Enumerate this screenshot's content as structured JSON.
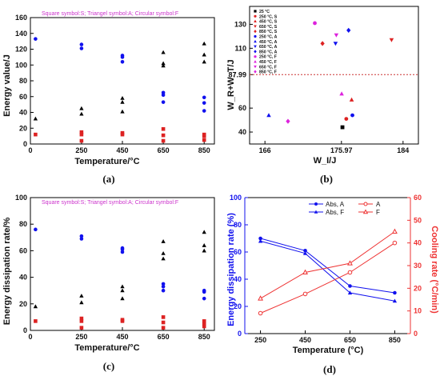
{
  "colors": {
    "S": "#dd2222",
    "A": "#000000",
    "F": "#1111ee",
    "magenta": "#dd22dd",
    "refline": "#cc3333"
  },
  "panels": {
    "a": {
      "label": "(a)",
      "ylabel": "Energy value/J",
      "xlabel": "Temperature/°C",
      "note": "Square symbol:S; Triangel symbol:A; Circular symbol:F"
    },
    "b": {
      "label": "(b)",
      "ylabel": "W_R+W_T/J",
      "xlabel": "W_I/J"
    },
    "c": {
      "label": "(c)",
      "ylabel": "Energy dissipation rate/%",
      "xlabel": "Temperature/°C",
      "note": "Square symbol:S; Triangel symbol:A; Circular symbol:F"
    },
    "d": {
      "label": "(d)",
      "ylabel": "Energy dissipation rate (%)",
      "y2label": "Cooling rate (°C/min)",
      "xlabel": "Temperature (°C)"
    }
  },
  "chart_data": [
    {
      "id": "a",
      "type": "scatter",
      "xlim": [
        0,
        900
      ],
      "ylim": [
        0,
        160
      ],
      "xticks": [
        0,
        250,
        450,
        650,
        850
      ],
      "yticks": [
        0,
        20,
        40,
        60,
        80,
        100,
        120,
        140,
        160
      ],
      "points": [
        {
          "x": 25,
          "y": 133,
          "c": "F"
        },
        {
          "x": 25,
          "y": 32,
          "c": "A"
        },
        {
          "x": 25,
          "y": 12,
          "c": "S"
        },
        {
          "x": 250,
          "y": 126,
          "c": "F"
        },
        {
          "x": 250,
          "y": 121,
          "c": "F"
        },
        {
          "x": 250,
          "y": 45,
          "c": "A"
        },
        {
          "x": 250,
          "y": 38,
          "c": "A"
        },
        {
          "x": 250,
          "y": 15,
          "c": "S"
        },
        {
          "x": 250,
          "y": 12,
          "c": "S"
        },
        {
          "x": 250,
          "y": 4,
          "c": "S"
        },
        {
          "x": 450,
          "y": 112,
          "c": "F"
        },
        {
          "x": 450,
          "y": 110,
          "c": "F"
        },
        {
          "x": 450,
          "y": 104,
          "c": "F"
        },
        {
          "x": 450,
          "y": 58,
          "c": "A"
        },
        {
          "x": 450,
          "y": 53,
          "c": "A"
        },
        {
          "x": 450,
          "y": 41,
          "c": "A"
        },
        {
          "x": 450,
          "y": 14,
          "c": "S"
        },
        {
          "x": 450,
          "y": 12,
          "c": "S"
        },
        {
          "x": 650,
          "y": 116,
          "c": "A"
        },
        {
          "x": 650,
          "y": 102,
          "c": "A"
        },
        {
          "x": 650,
          "y": 99,
          "c": "A"
        },
        {
          "x": 650,
          "y": 65,
          "c": "F"
        },
        {
          "x": 650,
          "y": 62,
          "c": "F"
        },
        {
          "x": 650,
          "y": 53,
          "c": "F"
        },
        {
          "x": 650,
          "y": 19,
          "c": "S"
        },
        {
          "x": 650,
          "y": 11,
          "c": "S"
        },
        {
          "x": 650,
          "y": 4,
          "c": "S"
        },
        {
          "x": 850,
          "y": 127,
          "c": "A"
        },
        {
          "x": 850,
          "y": 113,
          "c": "A"
        },
        {
          "x": 850,
          "y": 104,
          "c": "A"
        },
        {
          "x": 850,
          "y": 59,
          "c": "F"
        },
        {
          "x": 850,
          "y": 52,
          "c": "F"
        },
        {
          "x": 850,
          "y": 42,
          "c": "F"
        },
        {
          "x": 850,
          "y": 12,
          "c": "S"
        },
        {
          "x": 850,
          "y": 10,
          "c": "S"
        },
        {
          "x": 850,
          "y": 5,
          "c": "S"
        }
      ]
    },
    {
      "id": "b",
      "type": "scatter",
      "xlim": [
        164,
        186
      ],
      "ylim": [
        30,
        145
      ],
      "xticks": [
        166,
        175.97,
        184
      ],
      "xtick_labels": [
        "166",
        "175.97",
        "184"
      ],
      "yticks": [
        40,
        60,
        87.99,
        110,
        130
      ],
      "ytick_labels": [
        "40",
        "60",
        "87.99",
        "110",
        "130"
      ],
      "refline_y": 87.99,
      "legend": [
        {
          "label": "25 °C",
          "marker": "square",
          "color": "#000000"
        },
        {
          "label": "250 °C, S",
          "marker": "circle",
          "color": "#dd2222"
        },
        {
          "label": "450 °C, S",
          "marker": "triangle-up",
          "color": "#dd2222"
        },
        {
          "label": "650 °C, S",
          "marker": "triangle-down",
          "color": "#dd2222"
        },
        {
          "label": "850 °C, S",
          "marker": "diamond",
          "color": "#dd2222"
        },
        {
          "label": "250 °C, A",
          "marker": "circle",
          "color": "#1111ee"
        },
        {
          "label": "450 °C, A",
          "marker": "triangle-up",
          "color": "#1111ee"
        },
        {
          "label": "650 °C, A",
          "marker": "triangle-down",
          "color": "#1111ee"
        },
        {
          "label": "850 °C, A",
          "marker": "diamond",
          "color": "#1111ee"
        },
        {
          "label": "250 °C, F",
          "marker": "circle",
          "color": "#dd22dd"
        },
        {
          "label": "450 °C, F",
          "marker": "triangle-up",
          "color": "#dd22dd"
        },
        {
          "label": "650 °C, F",
          "marker": "triangle-down",
          "color": "#dd22dd"
        },
        {
          "label": "850 °C, F",
          "marker": "diamond",
          "color": "#dd22dd"
        }
      ],
      "points": [
        {
          "x": 166.5,
          "y": 54,
          "marker": "triangle-up",
          "color": "#1111ee"
        },
        {
          "x": 169.0,
          "y": 49,
          "marker": "diamond",
          "color": "#dd22dd"
        },
        {
          "x": 172.5,
          "y": 131,
          "marker": "circle",
          "color": "#dd22dd"
        },
        {
          "x": 173.5,
          "y": 114,
          "marker": "diamond",
          "color": "#dd2222"
        },
        {
          "x": 175.2,
          "y": 114,
          "marker": "triangle-down",
          "color": "#1111ee"
        },
        {
          "x": 175.3,
          "y": 121,
          "marker": "triangle-down",
          "color": "#dd22dd"
        },
        {
          "x": 176.0,
          "y": 72,
          "marker": "triangle-up",
          "color": "#dd22dd"
        },
        {
          "x": 176.1,
          "y": 44,
          "marker": "square",
          "color": "#000000"
        },
        {
          "x": 176.6,
          "y": 51,
          "marker": "circle",
          "color": "#dd2222"
        },
        {
          "x": 176.9,
          "y": 125,
          "marker": "diamond",
          "color": "#1111ee"
        },
        {
          "x": 177.3,
          "y": 67,
          "marker": "triangle-up",
          "color": "#dd2222"
        },
        {
          "x": 177.4,
          "y": 54,
          "marker": "circle",
          "color": "#1111ee"
        },
        {
          "x": 182.5,
          "y": 117,
          "marker": "triangle-down",
          "color": "#dd2222"
        }
      ]
    },
    {
      "id": "c",
      "type": "scatter",
      "xlim": [
        0,
        900
      ],
      "ylim": [
        0,
        100
      ],
      "xticks": [
        0,
        250,
        450,
        650,
        850
      ],
      "yticks": [
        0,
        20,
        40,
        60,
        80,
        100
      ],
      "points": [
        {
          "x": 25,
          "y": 76,
          "c": "F"
        },
        {
          "x": 25,
          "y": 18,
          "c": "A"
        },
        {
          "x": 25,
          "y": 7,
          "c": "S"
        },
        {
          "x": 250,
          "y": 71,
          "c": "F"
        },
        {
          "x": 250,
          "y": 69,
          "c": "F"
        },
        {
          "x": 250,
          "y": 26,
          "c": "A"
        },
        {
          "x": 250,
          "y": 21,
          "c": "A"
        },
        {
          "x": 250,
          "y": 9,
          "c": "S"
        },
        {
          "x": 250,
          "y": 7,
          "c": "S"
        },
        {
          "x": 250,
          "y": 2,
          "c": "S"
        },
        {
          "x": 450,
          "y": 62,
          "c": "F"
        },
        {
          "x": 450,
          "y": 61,
          "c": "F"
        },
        {
          "x": 450,
          "y": 59,
          "c": "F"
        },
        {
          "x": 450,
          "y": 33,
          "c": "A"
        },
        {
          "x": 450,
          "y": 30,
          "c": "A"
        },
        {
          "x": 450,
          "y": 24,
          "c": "A"
        },
        {
          "x": 450,
          "y": 8,
          "c": "S"
        },
        {
          "x": 450,
          "y": 7,
          "c": "S"
        },
        {
          "x": 650,
          "y": 67,
          "c": "A"
        },
        {
          "x": 650,
          "y": 58,
          "c": "A"
        },
        {
          "x": 650,
          "y": 54,
          "c": "A"
        },
        {
          "x": 650,
          "y": 35,
          "c": "F"
        },
        {
          "x": 650,
          "y": 33,
          "c": "F"
        },
        {
          "x": 650,
          "y": 30,
          "c": "F"
        },
        {
          "x": 650,
          "y": 10,
          "c": "S"
        },
        {
          "x": 650,
          "y": 6,
          "c": "S"
        },
        {
          "x": 650,
          "y": 2,
          "c": "S"
        },
        {
          "x": 850,
          "y": 74,
          "c": "A"
        },
        {
          "x": 850,
          "y": 64,
          "c": "A"
        },
        {
          "x": 850,
          "y": 60,
          "c": "A"
        },
        {
          "x": 850,
          "y": 30,
          "c": "F"
        },
        {
          "x": 850,
          "y": 29,
          "c": "F"
        },
        {
          "x": 850,
          "y": 24,
          "c": "F"
        },
        {
          "x": 850,
          "y": 7,
          "c": "S"
        },
        {
          "x": 850,
          "y": 5,
          "c": "S"
        },
        {
          "x": 850,
          "y": 3,
          "c": "S"
        }
      ]
    },
    {
      "id": "d",
      "type": "line",
      "x": [
        250,
        450,
        650,
        850
      ],
      "xlim": [
        180,
        920
      ],
      "xticks": [
        250,
        450,
        650,
        850
      ],
      "ylim": [
        0,
        100
      ],
      "yticks": [
        0,
        20,
        40,
        60,
        80,
        100
      ],
      "y2lim": [
        0,
        60
      ],
      "y2ticks": [
        0,
        10,
        20,
        30,
        40,
        50,
        60
      ],
      "legend_left": [
        {
          "label": "Abs, A"
        },
        {
          "label": "Abs, F"
        }
      ],
      "legend_right": [
        {
          "label": "A"
        },
        {
          "label": "F"
        }
      ],
      "series": [
        {
          "name": "Abs, A",
          "axis": "left",
          "marker": "circle",
          "color": "#1111ee",
          "values": [
            70,
            61,
            35,
            30
          ]
        },
        {
          "name": "Abs, F",
          "axis": "left",
          "marker": "triangle-up",
          "color": "#1111ee",
          "values": [
            68,
            59,
            30,
            24
          ]
        },
        {
          "name": "A",
          "axis": "right",
          "marker": "circle",
          "color": "#ee3333",
          "values": [
            9,
            17.5,
            27,
            40
          ]
        },
        {
          "name": "F",
          "axis": "right",
          "marker": "triangle-up",
          "color": "#ee3333",
          "values": [
            15.5,
            27,
            31,
            45
          ]
        }
      ]
    }
  ]
}
